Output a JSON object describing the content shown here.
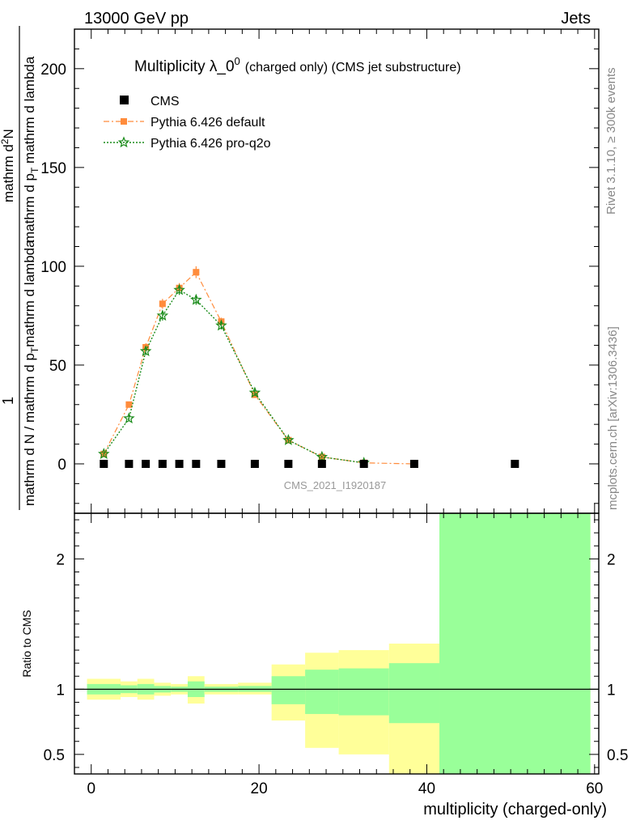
{
  "header": {
    "left": "13000 GeV pp",
    "right": "Jets"
  },
  "title": {
    "main": "Multiplicity λ_0",
    "superscript": "0",
    "suffix": "(charged only) (CMS jet substructure)"
  },
  "side_labels": {
    "rivet": "Rivet 3.1.10, ≥ 300k events",
    "mcplots": "mcplots.cern.ch [arXiv:1306.3436]"
  },
  "analysis_label": "CMS_2021_I1920187",
  "ylabel": {
    "numerator": "1",
    "denominator_part1": "mathrm d N / mathrm d p",
    "denominator_sub1": "T",
    "denominator_part2": "mathrm d lambda",
    "full_hint": "1 / (mathrm d N / mathrm d p_T mathrm d lambda) · mathrm d²N / (mathrm d p_T mathrm d lambda)"
  },
  "ylabel_top": {
    "part1": "mathrm d",
    "sup": "2",
    "part2": "N"
  },
  "ylabel_bottom": {
    "part1": "mathrm d p",
    "sub": "T",
    "part2": " mathrm d lambda"
  },
  "colors": {
    "cms": "#000000",
    "default": "#ff8c3c",
    "proq2o": "#1a8c1a",
    "band_yellow": "#ffff99",
    "band_green": "#99ff99"
  },
  "chart_data": [
    {
      "type": "scatter",
      "panel": "main",
      "ylim": [
        -25,
        220
      ],
      "xlim": [
        -2,
        60.5
      ],
      "yticks": [
        0,
        50,
        100,
        150,
        200
      ],
      "yticks_label": [
        "0",
        "50",
        "100",
        "150",
        "200"
      ],
      "series": [
        {
          "name": "CMS",
          "style": "markers",
          "x": [
            1.5,
            4.5,
            6.5,
            8.5,
            10.5,
            12.5,
            15.5,
            19.5,
            23.5,
            27.5,
            32.5,
            38.5,
            50.5
          ],
          "values": [
            0,
            0,
            0,
            0,
            0,
            0,
            0,
            0,
            0,
            0,
            0,
            0,
            0
          ]
        },
        {
          "name": "Pythia 6.426 default",
          "style": "dash-dot with squares",
          "x": [
            1.5,
            4.5,
            6.5,
            8.5,
            10.5,
            12.5,
            15.5,
            19.5,
            23.5,
            27.5,
            32.5,
            38.5
          ],
          "values": [
            5,
            30,
            59,
            81,
            89,
            97,
            72,
            35,
            12,
            3.5,
            0.5,
            0
          ],
          "errors": [
            1,
            1.5,
            2,
            2.5,
            2.5,
            3,
            2,
            1.5,
            1,
            0.5,
            0.2,
            0.1
          ]
        },
        {
          "name": "Pythia 6.426 pro-q2o",
          "style": "dotted with stars",
          "x": [
            1.5,
            4.5,
            6.5,
            8.5,
            10.5,
            12.5,
            15.5,
            19.5,
            23.5,
            27.5,
            32.5
          ],
          "values": [
            5,
            23,
            57,
            75,
            88,
            83,
            70,
            36,
            12,
            3.5,
            0.5
          ],
          "errors": [
            1,
            1.5,
            2,
            2.5,
            2.5,
            2.5,
            2,
            1.5,
            1,
            0.5,
            0.2
          ]
        }
      ]
    },
    {
      "type": "area",
      "panel": "ratio",
      "ylabel": "Ratio to CMS",
      "xlabel": "multiplicity (charged-only)",
      "ylim": [
        0.35,
        2.35
      ],
      "xlim": [
        -2,
        60.5
      ],
      "yticks": [
        0.5,
        1,
        2
      ],
      "yticks_label": [
        "0.5",
        "1",
        "2"
      ],
      "xticks": [
        0,
        20,
        40,
        60
      ],
      "xticks_label": [
        "0",
        "20",
        "40",
        "60"
      ],
      "reference": 1,
      "bins": [
        {
          "lo": -0.5,
          "hi": 3.5,
          "yellow": [
            0.92,
            1.08
          ],
          "green": [
            0.96,
            1.04
          ]
        },
        {
          "lo": 3.5,
          "hi": 5.5,
          "yellow": [
            0.94,
            1.06
          ],
          "green": [
            0.97,
            1.03
          ]
        },
        {
          "lo": 5.5,
          "hi": 7.5,
          "yellow": [
            0.92,
            1.08
          ],
          "green": [
            0.96,
            1.04
          ]
        },
        {
          "lo": 7.5,
          "hi": 9.5,
          "yellow": [
            0.95,
            1.05
          ],
          "green": [
            0.975,
            1.025
          ]
        },
        {
          "lo": 9.5,
          "hi": 11.5,
          "yellow": [
            0.96,
            1.04
          ],
          "green": [
            0.98,
            1.02
          ]
        },
        {
          "lo": 11.5,
          "hi": 13.5,
          "yellow": [
            0.89,
            1.1
          ],
          "green": [
            0.94,
            1.06
          ]
        },
        {
          "lo": 13.5,
          "hi": 17.5,
          "yellow": [
            0.96,
            1.04
          ],
          "green": [
            0.98,
            1.02
          ]
        },
        {
          "lo": 17.5,
          "hi": 21.5,
          "yellow": [
            0.96,
            1.05
          ],
          "green": [
            0.98,
            1.025
          ]
        },
        {
          "lo": 21.5,
          "hi": 25.5,
          "yellow": [
            0.76,
            1.19
          ],
          "green": [
            0.885,
            1.1
          ]
        },
        {
          "lo": 25.5,
          "hi": 29.5,
          "yellow": [
            0.55,
            1.28
          ],
          "green": [
            0.81,
            1.15
          ]
        },
        {
          "lo": 29.5,
          "hi": 35.5,
          "yellow": [
            0.5,
            1.3
          ],
          "green": [
            0.8,
            1.16
          ]
        },
        {
          "lo": 35.5,
          "hi": 41.5,
          "yellow": [
            0.35,
            1.35
          ],
          "green": [
            0.74,
            1.2
          ]
        },
        {
          "lo": 41.5,
          "hi": 59.5,
          "yellow": [
            0.35,
            2.35
          ],
          "green": [
            0.35,
            2.35
          ]
        }
      ]
    }
  ]
}
